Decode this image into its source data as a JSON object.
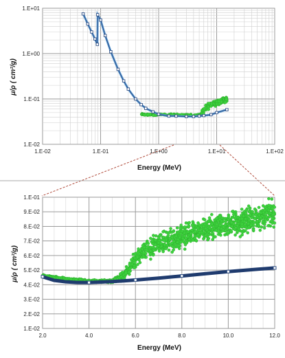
{
  "chart_data": [
    {
      "id": "top",
      "type": "scatter",
      "title": "",
      "xlabel": "Energy  (MeV)",
      "ylabel": "μ/ρ  ( cm²/g)",
      "x_scale": "log",
      "y_scale": "log",
      "xlim": [
        0.01,
        100
      ],
      "ylim": [
        0.01,
        10
      ],
      "x_ticks": [
        "1.E-02",
        "1.E-01",
        "1.E+00",
        "1.E+01",
        "1.E+02"
      ],
      "y_ticks": [
        "1.E+01",
        "1.E+00",
        "1.E-01",
        "1.E-02"
      ],
      "grid": true,
      "series": [
        {
          "color": "#2e4f85",
          "line_color": "#5b9bd5",
          "style": "line+markers",
          "x": [
            0.05,
            0.06,
            0.07,
            0.08,
            0.088,
            0.089,
            0.1,
            0.12,
            0.15,
            0.2,
            0.25,
            0.3,
            0.4,
            0.5,
            0.6,
            0.8,
            1.0,
            1.5,
            2,
            3,
            4,
            5,
            6,
            8,
            10,
            15
          ],
          "y": [
            7.5,
            4.5,
            3.0,
            2.1,
            1.6,
            7.2,
            5.5,
            2.5,
            1.1,
            0.45,
            0.25,
            0.165,
            0.1,
            0.075,
            0.062,
            0.052,
            0.046,
            0.042,
            0.042,
            0.041,
            0.041,
            0.042,
            0.043,
            0.045,
            0.05,
            0.058
          ]
        },
        {
          "color": "#3dd13d",
          "style": "markers",
          "x": [
            0.5,
            0.6,
            0.8,
            1.0,
            1.5,
            2,
            3,
            4,
            5,
            5.5,
            6,
            7,
            8,
            9,
            10,
            11,
            12,
            13,
            14,
            15
          ],
          "y": [
            0.046,
            0.045,
            0.045,
            0.045,
            0.045,
            0.045,
            0.044,
            0.044,
            0.044,
            0.047,
            0.055,
            0.068,
            0.075,
            0.08,
            0.085,
            0.088,
            0.09,
            0.092,
            0.095,
            0.1
          ]
        }
      ]
    },
    {
      "id": "bottom",
      "type": "scatter",
      "title": "",
      "xlabel": "Energy  (MeV)",
      "ylabel": "μ/ρ  ( cm²/g)",
      "x_scale": "linear",
      "y_scale": "linear",
      "xlim": [
        2.0,
        12.0
      ],
      "ylim": [
        0.01,
        0.1
      ],
      "x_ticks": [
        "2.0",
        "4.0",
        "6.0",
        "8.0",
        "10.0",
        "12.0"
      ],
      "x_tick_values": [
        2,
        4,
        6,
        8,
        10,
        12
      ],
      "y_ticks": [
        "1.E-01",
        "9.E-02",
        "8.E-02",
        "7.E-02",
        "6.E-02",
        "5.E-02",
        "4.E-02",
        "3.E-02",
        "2.E-02",
        "1.E-02"
      ],
      "y_tick_values": [
        0.1,
        0.09,
        0.08,
        0.07,
        0.06,
        0.05,
        0.04,
        0.03,
        0.02,
        0.01
      ],
      "grid": true,
      "series": [
        {
          "color": "#2e4f85",
          "line_color": "#1f3b6e",
          "style": "line+markers",
          "x": [
            2.0,
            2.5,
            3.0,
            3.5,
            4.0,
            4.5,
            5.0,
            5.5,
            6.0,
            7.0,
            8.0,
            9.0,
            10.0,
            11.0,
            12.0
          ],
          "y": [
            0.0455,
            0.043,
            0.042,
            0.0415,
            0.0415,
            0.0418,
            0.0422,
            0.0426,
            0.0432,
            0.0445,
            0.046,
            0.0475,
            0.049,
            0.0503,
            0.0515
          ]
        },
        {
          "color": "#3dd13d",
          "style": "markers",
          "band_x": [
            2.0,
            3.0,
            4.0,
            5.0,
            5.5,
            6.0,
            6.5,
            7.0,
            8.0,
            9.0,
            10.0,
            11.0,
            12.0
          ],
          "band_mean": [
            0.046,
            0.044,
            0.0425,
            0.0425,
            0.046,
            0.057,
            0.064,
            0.068,
            0.073,
            0.078,
            0.082,
            0.085,
            0.09
          ],
          "band_spread": [
            0.0008,
            0.0008,
            0.0008,
            0.001,
            0.003,
            0.0055,
            0.0065,
            0.007,
            0.0075,
            0.008,
            0.0085,
            0.009,
            0.009
          ]
        }
      ]
    }
  ]
}
